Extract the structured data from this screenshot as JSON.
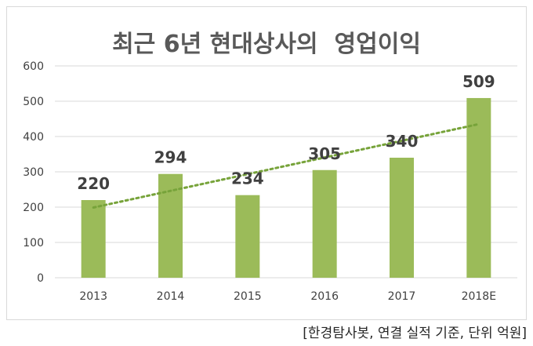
{
  "chart_data": {
    "type": "bar",
    "title": "최근 6년 현대상사의  영업이익",
    "categories": [
      "2013",
      "2014",
      "2015",
      "2016",
      "2017",
      "2018E"
    ],
    "series": [
      {
        "values": [
          220,
          294,
          234,
          305,
          340,
          509
        ]
      }
    ],
    "data_labels": [
      "220",
      "294",
      "234",
      "305",
      "340",
      "509"
    ],
    "y_ticks": [
      "0",
      "100",
      "200",
      "300",
      "400",
      "500",
      "600"
    ],
    "ylim": [
      0,
      600
    ],
    "trendline": {
      "type": "linear",
      "style": "dotted"
    },
    "grid": true,
    "legend": "none",
    "colors": {
      "bar": "#9bbb59",
      "trend": "#77a33a",
      "grid": "#d9d9d9",
      "text": "#404040",
      "title": "#595959"
    }
  },
  "source_note": "[한경탐사봇, 연결 실적 기준, 단위 억원]"
}
